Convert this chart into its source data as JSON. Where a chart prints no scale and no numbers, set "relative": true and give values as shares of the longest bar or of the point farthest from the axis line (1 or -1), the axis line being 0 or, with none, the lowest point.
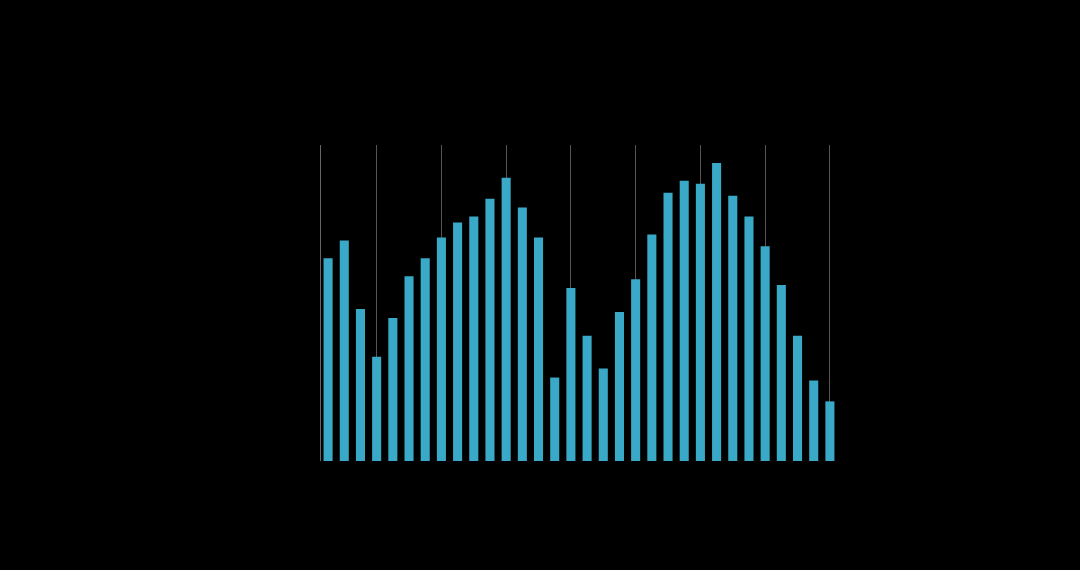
{
  "chart_data": {
    "type": "bar",
    "relative": true,
    "color": "#3aa9c8",
    "grid": "x",
    "categories": [
      null,
      null,
      null,
      null,
      null,
      null,
      null,
      null,
      null,
      null,
      null,
      null,
      null,
      null,
      null,
      null,
      null,
      null,
      null,
      null,
      null,
      null,
      null,
      null,
      null,
      null,
      null,
      null,
      null,
      null,
      null,
      null
    ],
    "values": [
      0.68,
      0.74,
      0.51,
      0.35,
      0.48,
      0.62,
      0.68,
      0.75,
      0.8,
      0.82,
      0.88,
      0.95,
      0.85,
      0.75,
      0.28,
      0.58,
      0.42,
      0.31,
      0.5,
      0.61,
      0.76,
      0.9,
      0.94,
      0.93,
      1,
      0.89,
      0.82,
      0.72,
      0.59,
      0.42,
      0.27,
      0.2
    ]
  }
}
